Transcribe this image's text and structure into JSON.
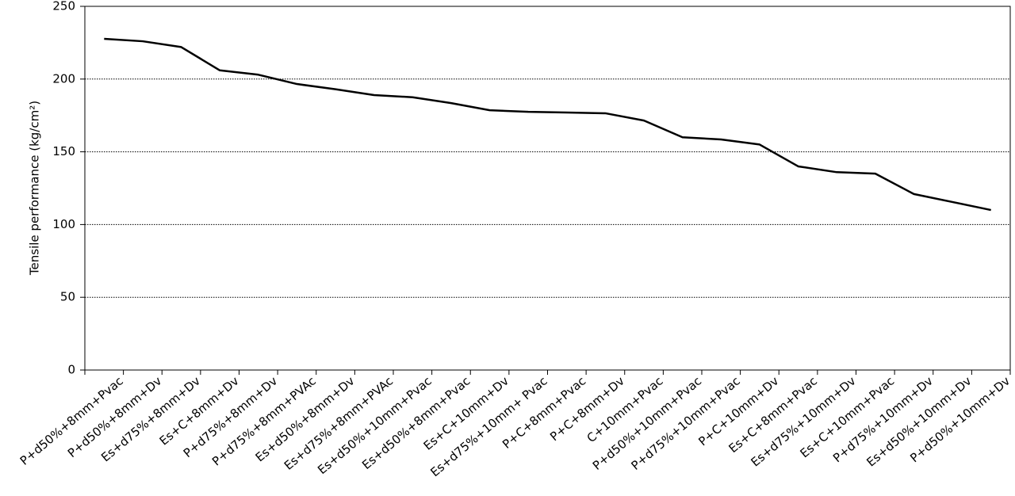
{
  "chart_data": {
    "type": "line",
    "y_label": "Tensile performance (kg/cm²)",
    "categories": [
      "P+d50%+8mm+Pvac",
      "P+d50%+8mm+Dv",
      "Es+d75%+8mm+Dv",
      "Es+C+8mm+Dv",
      "P+d75%+8mm+Dv",
      "P+d75%+8mm+PVAc",
      "Es+d50%+8mm+Dv",
      "Es+d75%+8mm+PVAc",
      "Es+d50%+10mm+Pvac",
      "Es+d50%+8mm+Pvac",
      "Es+C+10mm+Dv",
      "Es+d75%+10mm+ Pvac",
      "P+C+8mm+Pvac",
      "P+C+8mm+Dv",
      "C+10mm+Pvac",
      "P+d50%+10mm+Pvac",
      "P+d75%+10mm+Pvac",
      "P+C+10mm+Dv",
      "Es+C+8mm+Pvac",
      "Es+d75%+10mm+Dv",
      "Es+C+10mm+Pvac",
      "P+d75%+10mm+Dv",
      "Es+d50%+10mm+Dv",
      "P+d50%+10mm+Dv"
    ],
    "values": [
      227.7,
      226,
      222,
      206,
      203,
      196.6,
      193,
      189,
      187.5,
      183.5,
      178.6,
      177.5,
      177,
      176.5,
      171.5,
      160,
      158.5,
      155,
      140,
      136,
      135,
      121,
      115.5,
      110
    ],
    "color": "#000000",
    "ylim": [
      0,
      250
    ],
    "yticks": [
      0,
      50,
      100,
      150,
      200,
      250
    ],
    "grid": true
  }
}
